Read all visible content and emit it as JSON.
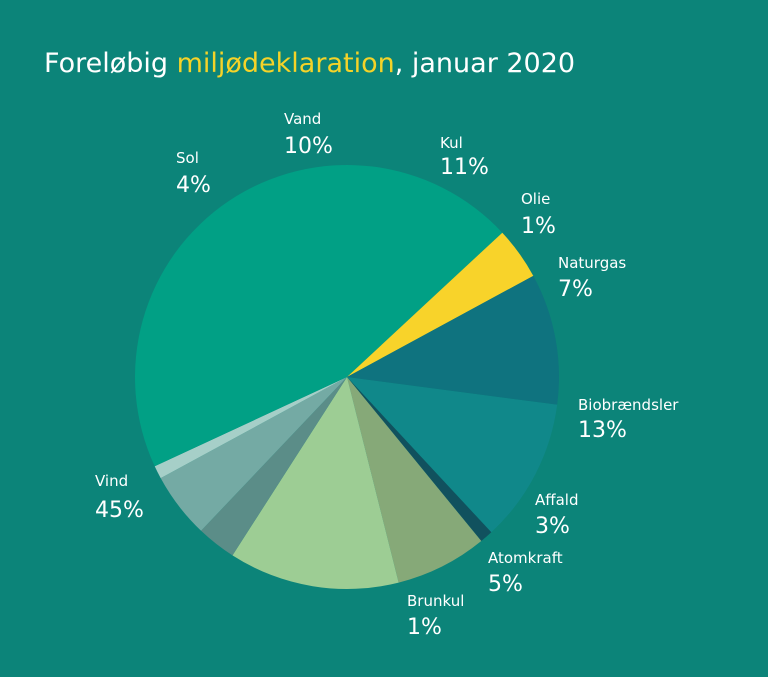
{
  "title": {
    "part1": "Foreløbig ",
    "highlight": "miljødeklaration",
    "part2": ", januar 2020"
  },
  "colors": {
    "background": "#0c8479",
    "title": "#ffffff",
    "highlight": "#f5d328"
  },
  "chart_data": {
    "type": "pie",
    "title": "Foreløbig miljødeklaration, januar 2020",
    "slices": [
      {
        "name": "Kul",
        "label": "11%",
        "value": 11,
        "color": "#10888a"
      },
      {
        "name": "Olie",
        "label": "1%",
        "value": 1,
        "color": "#11515e"
      },
      {
        "name": "Naturgas",
        "label": "7%",
        "value": 7,
        "color": "#86a978"
      },
      {
        "name": "Biobrændsler",
        "label": "13%",
        "value": 13,
        "color": "#9dcd94"
      },
      {
        "name": "Affald",
        "label": "3%",
        "value": 3,
        "color": "#5b8d88"
      },
      {
        "name": "Atomkraft",
        "label": "5%",
        "value": 5,
        "color": "#74aaa4"
      },
      {
        "name": "Brunkul",
        "label": "1%",
        "value": 1,
        "color": "#a6cfc8"
      },
      {
        "name": "Vind",
        "label": "45%",
        "value": 45,
        "color": "#01a085"
      },
      {
        "name": "Sol",
        "label": "4%",
        "value": 4,
        "color": "#f8d32a"
      },
      {
        "name": "Vand",
        "label": "10%",
        "value": 10,
        "color": "#0f737f"
      }
    ]
  }
}
